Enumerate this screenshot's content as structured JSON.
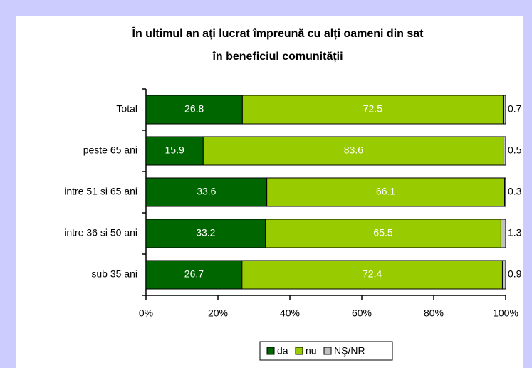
{
  "chart_data": {
    "type": "stacked-bar-horizontal",
    "title": [
      "În ultimul an ați lucrat împreună cu alți oameni din sat",
      "în beneficiul comunității"
    ],
    "categories": [
      "Total",
      "peste 65 ani",
      "intre 51 si 65 ani",
      "intre 36 si 50 ani",
      "sub 35 ani"
    ],
    "series": [
      {
        "name": "da",
        "color": "#006600",
        "values": [
          26.8,
          15.9,
          33.6,
          33.2,
          26.7
        ]
      },
      {
        "name": "nu",
        "color": "#99cc00",
        "values": [
          72.5,
          83.6,
          66.1,
          65.5,
          72.4
        ]
      },
      {
        "name": "NŞ/NR",
        "color": "#c0c0c0",
        "values": [
          0.7,
          0.5,
          0.3,
          1.3,
          0.9
        ]
      }
    ],
    "xlim": [
      0,
      100
    ],
    "xticks": [
      {
        "value": 0,
        "label": "0%"
      },
      {
        "value": 20,
        "label": "20%"
      },
      {
        "value": 40,
        "label": "40%"
      },
      {
        "value": 60,
        "label": "60%"
      },
      {
        "value": 80,
        "label": "80%"
      },
      {
        "value": 100,
        "label": "100%"
      }
    ],
    "legend": "bottom"
  }
}
